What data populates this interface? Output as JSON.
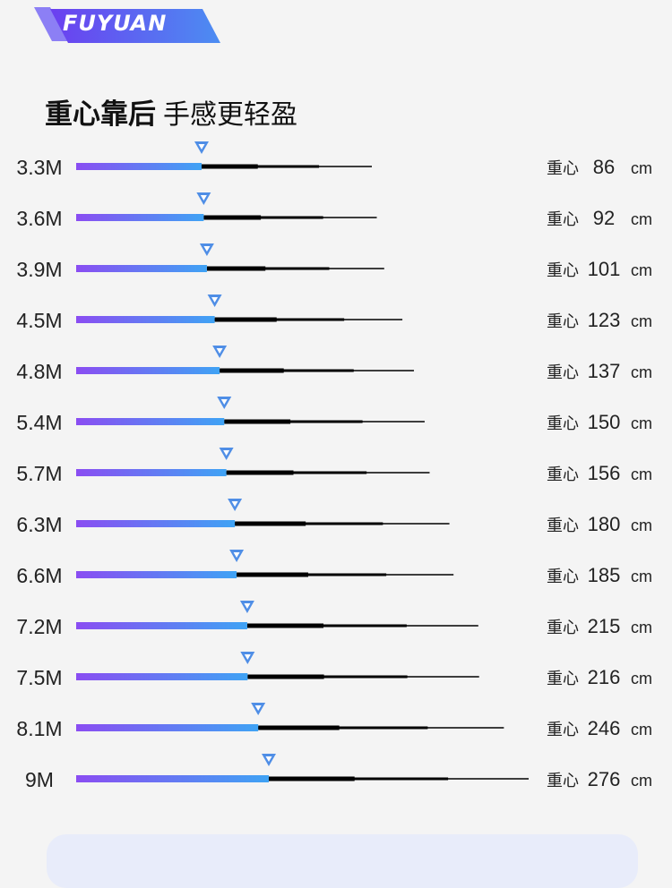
{
  "brand": {
    "logo_text": "FUYUAN",
    "accent_colors": [
      "#7a4bf0",
      "#4aa6f5"
    ]
  },
  "headline": {
    "bold": "重心靠后",
    "light": "手感更轻盈"
  },
  "chart_data": {
    "type": "bar",
    "title": "重心靠后 手感更轻盈",
    "categories": [
      "3.3M",
      "3.6M",
      "3.9M",
      "4.5M",
      "4.8M",
      "5.4M",
      "5.7M",
      "6.3M",
      "6.6M",
      "7.2M",
      "7.5M",
      "8.1M",
      "9M"
    ],
    "series": [
      {
        "values": [
          86,
          92,
          101,
          123,
          137,
          150,
          156,
          180,
          185,
          215,
          216,
          246,
          276
        ]
      }
    ],
    "value_prefix": "重心",
    "value_unit": "cm",
    "bar_gradient": [
      "#8a4df2",
      "#3fa3f4"
    ],
    "marker_color": "#4f8ee6",
    "rod_color": "#000000",
    "legend": "none",
    "grid": false
  }
}
